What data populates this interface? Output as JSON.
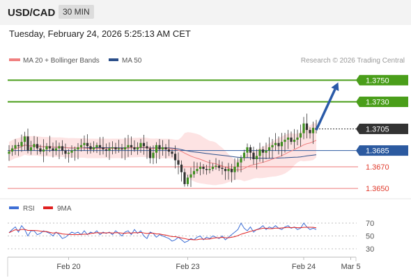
{
  "header": {
    "symbol": "USD/CAD",
    "timeframe": "30 MIN"
  },
  "timestamp": "Tuesday, February 24, 2026 5:25:13 AM CET",
  "chart_data": [
    {
      "type": "candlestick",
      "legend": [
        {
          "label": "MA 20 + Bollinger Bands",
          "color": "#f08080"
        },
        {
          "label": "MA 50",
          "color": "#2c4f8a"
        }
      ],
      "copyright": "Research © 2026 Trading Central",
      "ylim": [
        1.3643,
        1.3765
      ],
      "price_levels": [
        {
          "label": "1.3750",
          "value": 1.375,
          "kind": "target"
        },
        {
          "label": "1.3730",
          "value": 1.373,
          "kind": "target"
        },
        {
          "label": "1.3705",
          "value": 1.3705,
          "kind": "last"
        },
        {
          "label": "1.3685",
          "value": 1.3685,
          "kind": "pivot"
        },
        {
          "label": "1.3670",
          "value": 1.367,
          "kind": "support"
        },
        {
          "label": "1.3650",
          "value": 1.365,
          "kind": "support"
        }
      ],
      "forecast_arrow": {
        "from_index": 98,
        "from": 1.3704,
        "to_index": 105,
        "to": 1.3748
      },
      "closes": [
        1.3684,
        1.3687,
        1.369,
        1.3689,
        1.3693,
        1.3698,
        1.3685,
        1.3688,
        1.3691,
        1.3687,
        1.3684,
        1.3686,
        1.3689,
        1.3687,
        1.3685,
        1.3687,
        1.3689,
        1.3685,
        1.3682,
        1.3683,
        1.3685,
        1.3686,
        1.3688,
        1.369,
        1.3692,
        1.3689,
        1.3686,
        1.3688,
        1.369,
        1.3688,
        1.3686,
        1.3685,
        1.3687,
        1.3688,
        1.3686,
        1.3687,
        1.3686,
        1.3688,
        1.369,
        1.3688,
        1.3686,
        1.3688,
        1.3692,
        1.3689,
        1.3687,
        1.3678,
        1.3683,
        1.369,
        1.3686,
        1.3688,
        1.3686,
        1.3684,
        1.3682,
        1.3676,
        1.3672,
        1.3665,
        1.3654,
        1.366,
        1.3663,
        1.3666,
        1.3668,
        1.367,
        1.3668,
        1.3667,
        1.3668,
        1.367,
        1.3671,
        1.3669,
        1.3668,
        1.3666,
        1.3668,
        1.3665,
        1.367,
        1.3674,
        1.3678,
        1.3683,
        1.3688,
        1.3683,
        1.3677,
        1.368,
        1.3686,
        1.3683,
        1.3685,
        1.3688,
        1.369,
        1.3692,
        1.3689,
        1.3693,
        1.3695,
        1.3697,
        1.3693,
        1.3695,
        1.3697,
        1.3701,
        1.371,
        1.3704,
        1.3701,
        1.3706,
        1.3704
      ]
    },
    {
      "type": "line",
      "legend": [
        {
          "label": "RSI",
          "color": "#3e6fd6"
        },
        {
          "label": "9MA",
          "color": "#e02020"
        }
      ],
      "ylim": [
        20,
        80
      ],
      "y_ticks": [
        "70",
        "50",
        "30"
      ],
      "x_ticks": [
        {
          "label": "Feb 20",
          "index": 19
        },
        {
          "label": "Feb 23",
          "index": 57
        },
        {
          "label": "Feb 24",
          "index": 94
        },
        {
          "label": "Mar 5",
          "index": 109
        }
      ],
      "rsi": [
        55,
        60,
        64,
        56,
        66,
        60,
        50,
        58,
        58,
        52,
        54,
        58,
        56,
        54,
        50,
        56,
        52,
        46,
        48,
        52,
        56,
        54,
        56,
        52,
        58,
        52,
        56,
        54,
        58,
        52,
        56,
        54,
        56,
        52,
        58,
        54,
        50,
        56,
        58,
        52,
        60,
        54,
        58,
        50,
        46,
        56,
        54,
        48,
        52,
        50,
        48,
        46,
        42,
        44,
        48,
        44,
        40,
        42,
        46,
        44,
        48,
        50,
        44,
        48,
        46,
        50,
        48,
        46,
        50,
        44,
        48,
        52,
        56,
        60,
        70,
        62,
        58,
        64,
        56,
        60,
        62,
        66,
        60,
        64,
        62,
        66,
        62,
        60,
        64,
        66,
        62,
        64,
        60,
        62,
        70,
        64,
        60,
        62,
        60
      ]
    }
  ]
}
